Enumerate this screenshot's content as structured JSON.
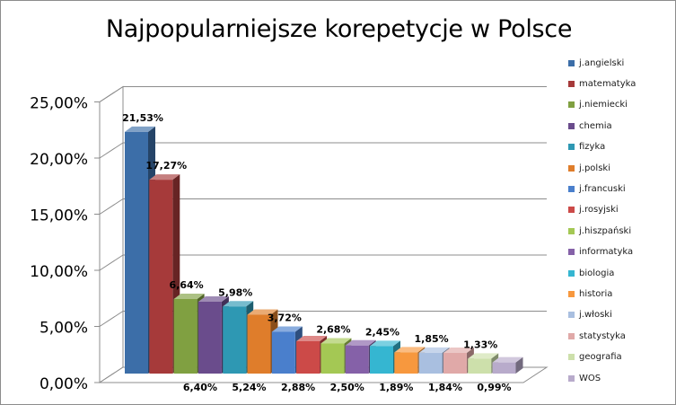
{
  "chart_data": {
    "type": "bar",
    "title": "Najpopularniejsze korepetycje w Polsce",
    "xlabel": "",
    "ylabel": "",
    "ylim": [
      0,
      25
    ],
    "y_ticks": [
      0,
      5,
      10,
      15,
      20,
      25
    ],
    "y_tick_labels": [
      "0,00%",
      "5,00%",
      "10,00%",
      "15,00%",
      "20,00%",
      "25,00%"
    ],
    "grid": true,
    "legend_position": "right",
    "style": "3d-clustered-column",
    "series": [
      {
        "name": "j.angielski",
        "value": 21.53,
        "label": "21,53%",
        "color": "#3c6ea8"
      },
      {
        "name": "matematyka",
        "value": 17.27,
        "label": "17,27%",
        "color": "#a63a3a"
      },
      {
        "name": "j.niemiecki",
        "value": 6.64,
        "label": "6,64%",
        "color": "#80a041"
      },
      {
        "name": "chemia",
        "value": 6.4,
        "label": "6,40%",
        "color": "#6a4c8c"
      },
      {
        "name": "fizyka",
        "value": 5.98,
        "label": "5,98%",
        "color": "#2e98b3"
      },
      {
        "name": "j.polski",
        "value": 5.24,
        "label": "5,24%",
        "color": "#df7d2b"
      },
      {
        "name": "j.francuski",
        "value": 3.72,
        "label": "3,72%",
        "color": "#4a7fcc"
      },
      {
        "name": "j.rosyjski",
        "value": 2.88,
        "label": "2,88%",
        "color": "#cc4a48"
      },
      {
        "name": "j.hiszpański",
        "value": 2.68,
        "label": "2,68%",
        "color": "#a4c854"
      },
      {
        "name": "informatyka",
        "value": 2.5,
        "label": "2,50%",
        "color": "#8561a8"
      },
      {
        "name": "biologia",
        "value": 2.45,
        "label": "2,45%",
        "color": "#35b6d1"
      },
      {
        "name": "historia",
        "value": 1.89,
        "label": "1,89%",
        "color": "#f7983e"
      },
      {
        "name": "j.włoski",
        "value": 1.85,
        "label": "1,85%",
        "color": "#a9bfe0"
      },
      {
        "name": "statystyka",
        "value": 1.84,
        "label": "1,84%",
        "color": "#e0a9a8"
      },
      {
        "name": "geografia",
        "value": 1.33,
        "label": "1,33%",
        "color": "#cde0ab"
      },
      {
        "name": "WOS",
        "value": 0.99,
        "label": "0,99%",
        "color": "#b8abcb"
      }
    ]
  }
}
